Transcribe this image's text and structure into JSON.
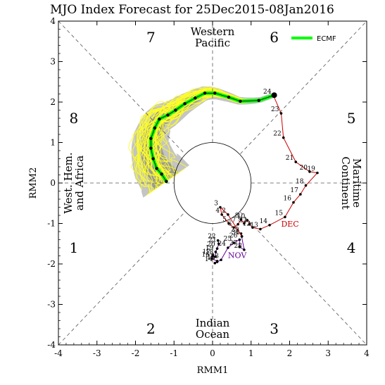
{
  "chart_data": {
    "type": "line",
    "title": "MJO Index Forecast for 25Dec2015-08Jan2016",
    "xlabel": "RMM1",
    "ylabel": "RMM2",
    "xlim": [
      -4,
      4
    ],
    "ylim": [
      -4,
      4
    ],
    "ticks": [
      "-4",
      "-3",
      "-2",
      "-1",
      "0",
      "1",
      "2",
      "3",
      "4"
    ],
    "phases": [
      {
        "label": "1",
        "x": -3.6,
        "y": -1.6
      },
      {
        "label": "2",
        "x": -1.6,
        "y": -3.6
      },
      {
        "label": "3",
        "x": 1.6,
        "y": -3.6
      },
      {
        "label": "4",
        "x": 3.6,
        "y": -1.6
      },
      {
        "label": "5",
        "x": 3.6,
        "y": 1.6
      },
      {
        "label": "6",
        "x": 1.6,
        "y": 3.6
      },
      {
        "label": "7",
        "x": -1.6,
        "y": 3.6
      },
      {
        "label": "8",
        "x": -3.6,
        "y": 1.6
      }
    ],
    "regions": [
      {
        "name": "western-pacific",
        "lines": [
          "Western",
          "Pacific"
        ],
        "x": 0,
        "y": 3.6,
        "rotate": 0
      },
      {
        "name": "indian-ocean",
        "lines": [
          "Indian",
          "Ocean"
        ],
        "x": 0,
        "y": -3.6,
        "rotate": 0
      },
      {
        "name": "west-hem-africa",
        "lines": [
          "West. Hem.",
          "and Africa"
        ],
        "x": -3.6,
        "y": 0,
        "rotate": -90
      },
      {
        "name": "maritime-continent",
        "lines": [
          "Maritime",
          "Continent"
        ],
        "x": 3.6,
        "y": 0,
        "rotate": 90
      }
    ],
    "legend": {
      "label": "ECMF",
      "color": "#00ff00",
      "position": "top-right"
    },
    "observed": {
      "nov": {
        "label": "NOV",
        "color": "#660099",
        "points": [
          {
            "x": 0.14,
            "y": -1.42,
            "label": "22"
          },
          {
            "x": 0.16,
            "y": -1.5,
            "label": "21"
          },
          {
            "x": 0.12,
            "y": -1.62,
            "label": "20"
          },
          {
            "x": 0.08,
            "y": -1.7,
            "label": "19"
          },
          {
            "x": 0.08,
            "y": -1.82,
            "label": "18"
          },
          {
            "x": 0.0,
            "y": -1.8,
            "label": "17"
          },
          {
            "x": -0.02,
            "y": -1.87,
            "label": "16"
          },
          {
            "x": 0.12,
            "y": -1.93,
            "label": "15"
          },
          {
            "x": 0.06,
            "y": -1.98,
            "label": "14"
          },
          {
            "x": 0.12,
            "y": -1.95,
            "label": "13"
          },
          {
            "x": 0.22,
            "y": -1.9,
            "label": "23"
          },
          {
            "x": 0.4,
            "y": -1.6,
            "label": "24"
          },
          {
            "x": 0.55,
            "y": -1.48,
            "label": "25"
          },
          {
            "x": 0.7,
            "y": -1.4,
            "label": "26"
          },
          {
            "x": 0.7,
            "y": -1.58,
            "label": "27"
          },
          {
            "x": 0.82,
            "y": -1.65,
            "label": "28"
          },
          {
            "x": 0.74,
            "y": -1.25,
            "label": "29"
          },
          {
            "x": 0.76,
            "y": -1.32,
            "label": "30"
          }
        ]
      },
      "dec": {
        "label": "DEC",
        "color": "#cc0000",
        "points": [
          {
            "x": 0.76,
            "y": -1.32,
            "label": "1"
          },
          {
            "x": 0.4,
            "y": -0.78,
            "label": "2"
          },
          {
            "x": 0.2,
            "y": -0.6,
            "label": "3"
          },
          {
            "x": 0.24,
            "y": -0.78,
            "label": "4"
          },
          {
            "x": 0.42,
            "y": -1.0,
            "label": "5"
          },
          {
            "x": 0.55,
            "y": -1.1,
            "label": "6"
          },
          {
            "x": 0.66,
            "y": -1.02,
            "label": "7"
          },
          {
            "x": 0.74,
            "y": -0.9,
            "label": "8"
          },
          {
            "x": 0.82,
            "y": -1.0,
            "label": "9"
          },
          {
            "x": 0.9,
            "y": -0.92,
            "label": "10"
          },
          {
            "x": 0.96,
            "y": -1.02,
            "label": "11"
          },
          {
            "x": 1.04,
            "y": -1.1,
            "label": "12"
          },
          {
            "x": 1.24,
            "y": -1.14,
            "label": "13"
          },
          {
            "x": 1.48,
            "y": -1.04,
            "label": "14"
          },
          {
            "x": 1.88,
            "y": -0.84,
            "label": "15"
          },
          {
            "x": 2.1,
            "y": -0.48,
            "label": "16"
          },
          {
            "x": 2.28,
            "y": -0.28,
            "label": "17"
          },
          {
            "x": 2.42,
            "y": -0.06,
            "label": "18"
          },
          {
            "x": 2.72,
            "y": 0.25,
            "label": "19"
          },
          {
            "x": 2.52,
            "y": 0.28,
            "label": "20"
          },
          {
            "x": 2.16,
            "y": 0.52,
            "label": "21"
          },
          {
            "x": 1.84,
            "y": 1.12,
            "label": "22"
          },
          {
            "x": 1.78,
            "y": 1.72,
            "label": "23"
          },
          {
            "x": 1.58,
            "y": 2.16,
            "label": "24"
          }
        ]
      }
    },
    "ensemble_mean": {
      "name": "ECMF",
      "start": {
        "x": 1.6,
        "y": 2.17
      },
      "points": [
        {
          "x": 1.6,
          "y": 2.17
        },
        {
          "x": 1.2,
          "y": 2.04
        },
        {
          "x": 0.72,
          "y": 2.02
        },
        {
          "x": 0.42,
          "y": 2.12
        },
        {
          "x": 0.06,
          "y": 2.22
        },
        {
          "x": -0.2,
          "y": 2.22
        },
        {
          "x": -0.45,
          "y": 2.1
        },
        {
          "x": -0.72,
          "y": 1.96
        },
        {
          "x": -0.96,
          "y": 1.8
        },
        {
          "x": -1.16,
          "y": 1.68
        },
        {
          "x": -1.38,
          "y": 1.58
        },
        {
          "x": -1.5,
          "y": 1.36
        },
        {
          "x": -1.6,
          "y": 1.1
        },
        {
          "x": -1.6,
          "y": 0.86
        },
        {
          "x": -1.54,
          "y": 0.6
        },
        {
          "x": -1.45,
          "y": 0.36
        },
        {
          "x": -1.32,
          "y": 0.22
        },
        {
          "x": -1.2,
          "y": 0.04
        }
      ]
    }
  }
}
